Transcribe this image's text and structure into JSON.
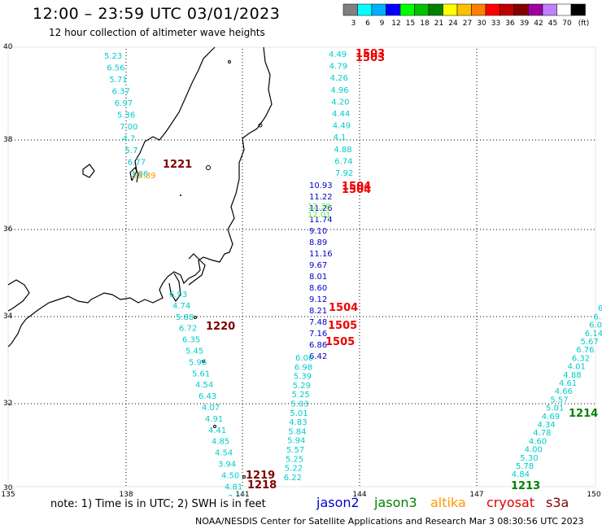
{
  "header": {
    "title": "12:00 – 23:59 UTC 03/01/2023",
    "subtitle": "12 hour collection of altimeter wave heights"
  },
  "color_scale": {
    "labels": [
      "3",
      "6",
      "9",
      "12",
      "15",
      "18",
      "21",
      "24",
      "27",
      "30",
      "33",
      "36",
      "39",
      "42",
      "45",
      "70",
      "(ft)"
    ],
    "colors": [
      "#808080",
      "#00ffff",
      "#00b0ff",
      "#0000ff",
      "#00ff00",
      "#00c000",
      "#008000",
      "#ffff00",
      "#ffc000",
      "#ff8000",
      "#ff0000",
      "#c00000",
      "#800000",
      "#a000a0",
      "#c080ff",
      "#ffffff",
      "#000000"
    ]
  },
  "map": {
    "lat_labels": [
      "40",
      "38",
      "36",
      "34",
      "32",
      "30"
    ],
    "lon_labels": [
      "135",
      "138",
      "141",
      "144",
      "147",
      "150"
    ]
  },
  "tracks": {
    "track_a": [
      "5.23",
      "6.56",
      "5.71",
      "6.37",
      "6.97",
      "5.36",
      "7.00",
      "4.7",
      "5.7",
      "6.77",
      "3.86"
    ],
    "track_a_orange": "23.89",
    "track_b": [
      "6.93",
      "4.74",
      "5.88",
      "6.72",
      "6.35",
      "5.45",
      "5.96",
      "5.61",
      "4.54",
      "6.43",
      "4.07",
      "4.91",
      "4.41",
      "4.85",
      "4.54",
      "3.94",
      "4.50",
      "4.81",
      "3.96",
      "6.05"
    ],
    "track_c_top": [
      "4.49",
      "4.79",
      "4.26",
      "4.96",
      "4.20",
      "4.44",
      "4.49",
      "4.1",
      "4.88",
      "6.74",
      "7.92"
    ],
    "track_c_blue": [
      "10.93",
      "11.22",
      "11.26",
      "11.74",
      "9.10",
      "8.89",
      "11.16",
      "9.67",
      "8.01",
      "8.60",
      "9.12",
      "8.21",
      "7.48",
      "7.16",
      "6.86",
      "6.42"
    ],
    "track_c_green": [
      "12.39",
      "12.01"
    ],
    "track_c_bottom": [
      "6.06",
      "6.98",
      "5.39",
      "5.29",
      "5.25",
      "5.03",
      "5.01",
      "4.83",
      "5.84",
      "5.94",
      "5.57",
      "5.25",
      "5.22",
      "6.22"
    ],
    "track_d": [
      "6",
      "6.3",
      "6.5",
      "6.06",
      "6.14",
      "5.67",
      "6.76",
      "6.32",
      "4.01",
      "4.88",
      "4.61",
      "4.66",
      "5.57",
      "5.01",
      "4.69",
      "4.34",
      "4.78",
      "4.60",
      "4.00",
      "5.30",
      "5.78",
      "4.84"
    ]
  },
  "tags": {
    "t1503": "1503",
    "t1503b": "1503",
    "t1221": "1221",
    "t1504a": "1504",
    "t1504b": "1504",
    "t1504c": "1504",
    "t1220": "1220",
    "t1505a": "1505",
    "t1505b": "1505",
    "t1219": "1219",
    "t1218": "1218",
    "t1214": "1214",
    "t1213": "1213"
  },
  "footer": {
    "note": "note:  1) Time is in UTC; 2) SWH is in feet",
    "satellites": [
      {
        "name": "jason2",
        "color": "#0000cc"
      },
      {
        "name": "jason3",
        "color": "#008000"
      },
      {
        "name": "altika",
        "color": "#ff9900"
      },
      {
        "name": "cryosat",
        "color": "#dd0000"
      },
      {
        "name": "s3a",
        "color": "#800000"
      }
    ],
    "credit": "NOAA/NESDIS Center for Satellite Applications and Research    Mar  3 08:30:56 UTC 2023"
  }
}
